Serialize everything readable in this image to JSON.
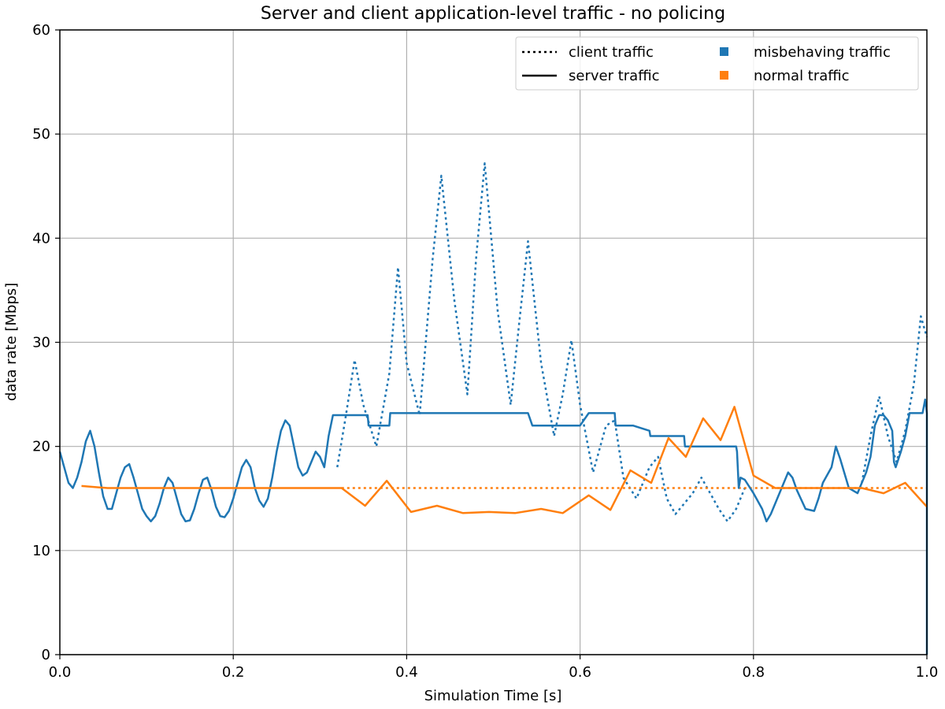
{
  "chart_data": {
    "type": "line",
    "title": "Server and client application-level traffic - no policing",
    "xlabel": "Simulation Time [s]",
    "ylabel": "data rate [Mbps]",
    "xlim": [
      0.0,
      1.0
    ],
    "ylim": [
      0,
      60
    ],
    "x_ticks": [
      "0.0",
      "0.2",
      "0.4",
      "0.6",
      "0.8",
      "1.0"
    ],
    "y_ticks": [
      "0",
      "10",
      "20",
      "30",
      "40",
      "50",
      "60"
    ],
    "grid": true,
    "legend_position": "top-right",
    "legend": [
      {
        "label": "client traffic",
        "kind": "line-style",
        "style": "dotted"
      },
      {
        "label": "misbehaving traffic",
        "kind": "color",
        "color": "#1f77b4"
      },
      {
        "label": "server traffic",
        "kind": "line-style",
        "style": "solid"
      },
      {
        "label": "normal traffic",
        "kind": "color",
        "color": "#ff7f0e"
      }
    ],
    "series": [
      {
        "category": "misbehaving traffic",
        "linestyle": "dotted",
        "color": "#1f77b4",
        "x": [
          0.32,
          0.33,
          0.34,
          0.35,
          0.365,
          0.38,
          0.39,
          0.4,
          0.415,
          0.43,
          0.44,
          0.455,
          0.47,
          0.48,
          0.49,
          0.505,
          0.52,
          0.53,
          0.54,
          0.555,
          0.57,
          0.58,
          0.59,
          0.6,
          0.615,
          0.63,
          0.64,
          0.65,
          0.665,
          0.68,
          0.69,
          0.7,
          0.71,
          0.72,
          0.73,
          0.74,
          0.75,
          0.76,
          0.77,
          0.78,
          0.79
        ],
        "y": [
          18.0,
          23.0,
          28.3,
          24.0,
          20.0,
          27.0,
          37.2,
          28.0,
          23.0,
          38.0,
          46.0,
          34.0,
          25.0,
          38.0,
          47.2,
          33.0,
          24.0,
          32.0,
          39.7,
          28.0,
          21.0,
          25.0,
          30.2,
          24.0,
          17.5,
          22.0,
          22.5,
          17.0,
          15.0,
          18.0,
          19.0,
          15.0,
          13.5,
          14.5,
          15.5,
          17.0,
          15.5,
          14.0,
          12.8,
          14.0,
          16.0
        ]
      },
      {
        "category": "misbehaving traffic",
        "linestyle": "dotted",
        "color": "#1f77b4",
        "x": [
          0.925,
          0.935,
          0.945,
          0.955,
          0.965,
          0.975,
          0.985,
          0.993,
          1.0
        ],
        "y": [
          16.5,
          21.0,
          24.8,
          21.0,
          18.5,
          21.5,
          26.0,
          32.5,
          30.5
        ]
      },
      {
        "category": "normal traffic",
        "linestyle": "dotted",
        "color": "#ff7f0e",
        "x": [
          0.325,
          1.0
        ],
        "y": [
          16.0,
          16.0
        ]
      },
      {
        "category": "misbehaving traffic",
        "linestyle": "solid",
        "color": "#1f77b4",
        "x": [
          0.0,
          0.005,
          0.01,
          0.015,
          0.02,
          0.025,
          0.03,
          0.035,
          0.04,
          0.045,
          0.05,
          0.055,
          0.06,
          0.065,
          0.07,
          0.075,
          0.08,
          0.085,
          0.09,
          0.095,
          0.1,
          0.105,
          0.11,
          0.115,
          0.12,
          0.125,
          0.13,
          0.135,
          0.14,
          0.145,
          0.15,
          0.155,
          0.16,
          0.165,
          0.17,
          0.175,
          0.18,
          0.185,
          0.19,
          0.195,
          0.2,
          0.205,
          0.21,
          0.215,
          0.22,
          0.225,
          0.23,
          0.235,
          0.24,
          0.245,
          0.25,
          0.255,
          0.26,
          0.265,
          0.27,
          0.275,
          0.28,
          0.285,
          0.29,
          0.295,
          0.3,
          0.305,
          0.31,
          0.315,
          0.32,
          0.325,
          0.33,
          0.34,
          0.355,
          0.356,
          0.38,
          0.381,
          0.4,
          0.44,
          0.45,
          0.47,
          0.48,
          0.5,
          0.52,
          0.54,
          0.545,
          0.6,
          0.61,
          0.625,
          0.64,
          0.641,
          0.66,
          0.661,
          0.68,
          0.681,
          0.7,
          0.701,
          0.72,
          0.721,
          0.74,
          0.741,
          0.76,
          0.761,
          0.78,
          0.781,
          0.783,
          0.785,
          0.79,
          0.8,
          0.81,
          0.815,
          0.82,
          0.83,
          0.84,
          0.845,
          0.85,
          0.86,
          0.87,
          0.875,
          0.88,
          0.89,
          0.895,
          0.9,
          0.91,
          0.92,
          0.925,
          0.93,
          0.935,
          0.94,
          0.945,
          0.95,
          0.955,
          0.96,
          0.962,
          0.964,
          0.97,
          0.975,
          0.98,
          0.985,
          0.99,
          0.995,
          0.998,
          1.0,
          1.0
        ],
        "y": [
          19.5,
          18.0,
          16.5,
          16.0,
          17.0,
          18.5,
          20.5,
          21.5,
          20.0,
          17.5,
          15.2,
          14.0,
          14.0,
          15.5,
          17.0,
          18.0,
          18.3,
          17.0,
          15.5,
          14.0,
          13.3,
          12.8,
          13.3,
          14.5,
          16.0,
          17.0,
          16.5,
          15.0,
          13.5,
          12.8,
          12.9,
          14.0,
          15.5,
          16.8,
          17.0,
          15.8,
          14.2,
          13.3,
          13.2,
          13.8,
          15.0,
          16.5,
          18.0,
          18.7,
          18.0,
          16.0,
          14.8,
          14.2,
          15.0,
          17.0,
          19.5,
          21.5,
          22.5,
          22.0,
          20.0,
          18.0,
          17.2,
          17.5,
          18.5,
          19.5,
          19.0,
          18.0,
          21.0,
          23.0,
          23.0,
          23.0,
          23.0,
          23.0,
          23.0,
          22.0,
          22.0,
          23.2,
          23.2,
          23.2,
          23.2,
          23.2,
          23.2,
          23.2,
          23.2,
          23.2,
          22.0,
          22.0,
          23.2,
          23.2,
          23.2,
          22.0,
          22.0,
          22.0,
          21.5,
          21.0,
          21.0,
          21.0,
          21.0,
          20.0,
          20.0,
          20.0,
          20.0,
          20.0,
          20.0,
          19.5,
          16.0,
          17.0,
          16.8,
          15.5,
          14.0,
          12.8,
          13.5,
          15.5,
          17.5,
          17.0,
          15.8,
          14.0,
          13.8,
          15.0,
          16.5,
          18.0,
          20.0,
          18.8,
          16.0,
          15.5,
          16.5,
          17.5,
          19.0,
          22.0,
          23.0,
          23.0,
          22.5,
          21.5,
          18.5,
          18.0,
          19.5,
          21.0,
          23.2,
          23.2,
          23.2,
          23.2,
          24.5,
          23.2,
          0.0
        ]
      },
      {
        "category": "normal traffic",
        "linestyle": "solid",
        "color": "#ff7f0e",
        "x": [
          0.025,
          0.055,
          0.325,
          0.352,
          0.377,
          0.405,
          0.435,
          0.465,
          0.495,
          0.525,
          0.555,
          0.58,
          0.61,
          0.635,
          0.658,
          0.682,
          0.702,
          0.722,
          0.742,
          0.762,
          0.778,
          0.8,
          0.825,
          0.875,
          0.9,
          0.925,
          0.95,
          0.975,
          1.0
        ],
        "y": [
          16.2,
          16.0,
          16.0,
          14.3,
          16.7,
          13.7,
          14.3,
          13.6,
          13.7,
          13.6,
          14.0,
          13.6,
          15.3,
          13.9,
          17.7,
          16.5,
          20.8,
          19.0,
          22.7,
          20.6,
          23.8,
          17.2,
          16.0,
          16.0,
          16.0,
          16.0,
          15.5,
          16.5,
          14.2
        ]
      }
    ]
  }
}
